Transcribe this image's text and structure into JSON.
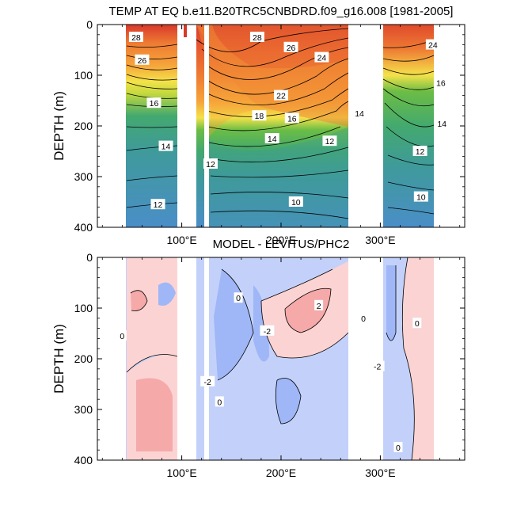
{
  "chart_data": [
    {
      "type": "heatmap",
      "title": "TEMP AT EQ b.e11.B20TRC5CNBDRD.f09_g16.008 [1981-2005]",
      "xlabel": "",
      "ylabel": "DEPTH (m)",
      "xlim": [
        15,
        385
      ],
      "ylim": [
        400,
        0
      ],
      "x_ticks": [
        100,
        200,
        300
      ],
      "x_tick_labels": [
        "100°E",
        "200°E",
        "300°E"
      ],
      "y_ticks": [
        0,
        100,
        200,
        300,
        400
      ],
      "y_tick_labels": [
        "0",
        "100",
        "200",
        "300",
        "400"
      ],
      "units": "°C",
      "colors": [
        "#4a8ec8",
        "#3f9a9a",
        "#43a96e",
        "#6cbd45",
        "#c3d93e",
        "#f4e24a",
        "#f6a43a",
        "#ee7a33",
        "#d8382b"
      ],
      "land_masks_deg": [
        [
          97,
          117
        ],
        [
          127,
          131
        ],
        [
          278,
          313
        ]
      ],
      "contour_labels": [
        {
          "text": "28",
          "lon": 54,
          "depth": 25
        },
        {
          "text": "26",
          "lon": 60,
          "depth": 70
        },
        {
          "text": "16",
          "lon": 72,
          "depth": 155
        },
        {
          "text": "14",
          "lon": 84,
          "depth": 240
        },
        {
          "text": "12",
          "lon": 76,
          "depth": 355
        },
        {
          "text": "28",
          "lon": 176,
          "depth": 25
        },
        {
          "text": "26",
          "lon": 210,
          "depth": 45
        },
        {
          "text": "24",
          "lon": 241,
          "depth": 65
        },
        {
          "text": "22",
          "lon": 200,
          "depth": 140
        },
        {
          "text": "18",
          "lon": 178,
          "depth": 180
        },
        {
          "text": "16",
          "lon": 211,
          "depth": 185
        },
        {
          "text": "14",
          "lon": 191,
          "depth": 225
        },
        {
          "text": "14",
          "lon": 279,
          "depth": 175
        },
        {
          "text": "12",
          "lon": 249,
          "depth": 230
        },
        {
          "text": "12",
          "lon": 129,
          "depth": 275
        },
        {
          "text": "10",
          "lon": 215,
          "depth": 350
        },
        {
          "text": "24",
          "lon": 353,
          "depth": 40
        },
        {
          "text": "16",
          "lon": 361,
          "depth": 115
        },
        {
          "text": "14",
          "lon": 362,
          "depth": 195
        },
        {
          "text": "12",
          "lon": 340,
          "depth": 250
        },
        {
          "text": "10",
          "lon": 341,
          "depth": 340
        }
      ]
    },
    {
      "type": "heatmap",
      "title": "MODEL - LEVITUS/PHC2",
      "xlabel": "",
      "ylabel": "DEPTH (m)",
      "xlim": [
        15,
        385
      ],
      "ylim": [
        400,
        0
      ],
      "x_ticks": [
        100,
        200,
        300
      ],
      "x_tick_labels": [
        "100°E",
        "200°E",
        "300°E"
      ],
      "y_ticks": [
        0,
        100,
        200,
        300,
        400
      ],
      "y_tick_labels": [
        "0",
        "100",
        "200",
        "300",
        "400"
      ],
      "units": "°C",
      "colors": {
        "strong_neg": "#7f9ff5",
        "neg": "#9fb6f7",
        "weak_neg": "#c3d1fa",
        "weak_pos": "#fbd3d3",
        "pos": "#f5a9a9"
      },
      "land_masks_deg": [
        [
          97,
          117
        ],
        [
          127,
          131
        ],
        [
          278,
          313
        ]
      ],
      "contour_labels": [
        {
          "text": "0",
          "lon": 40,
          "depth": 155
        },
        {
          "text": "0",
          "lon": 157,
          "depth": 80
        },
        {
          "text": "-2",
          "lon": 186,
          "depth": 145
        },
        {
          "text": "2",
          "lon": 238,
          "depth": 95
        },
        {
          "text": "0",
          "lon": 283,
          "depth": 120
        },
        {
          "text": "-2",
          "lon": 126,
          "depth": 245
        },
        {
          "text": "0",
          "lon": 138,
          "depth": 285
        },
        {
          "text": "-2",
          "lon": 297,
          "depth": 215
        },
        {
          "text": "0",
          "lon": 337,
          "depth": 130
        },
        {
          "text": "0",
          "lon": 318,
          "depth": 375
        }
      ]
    }
  ]
}
